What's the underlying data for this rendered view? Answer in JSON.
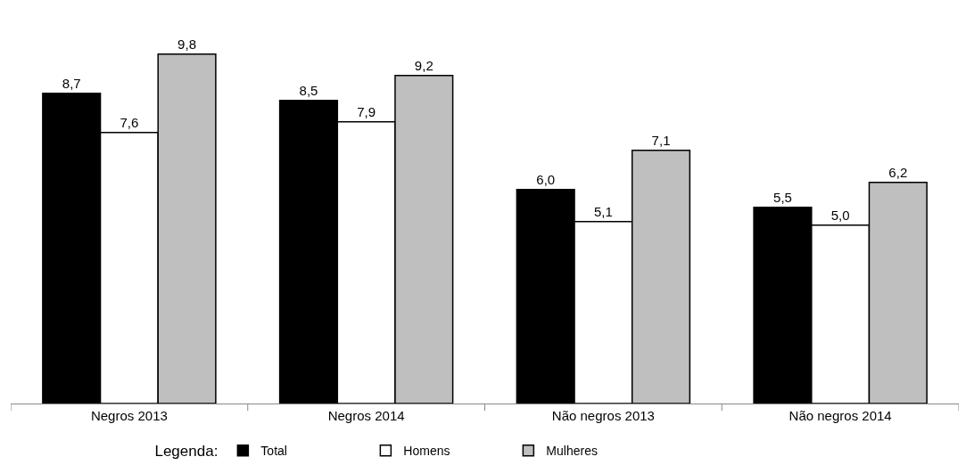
{
  "chart_data": {
    "type": "bar",
    "categories": [
      "Negros 2013",
      "Negros 2014",
      "Não negros 2013",
      "Não negros 2014"
    ],
    "series": [
      {
        "name": "Total",
        "color": "#000000",
        "values": [
          8.7,
          8.5,
          6.0,
          5.5
        ],
        "value_labels": [
          "8,7",
          "8,5",
          "6,0",
          "5,5"
        ]
      },
      {
        "name": "Homens",
        "color": "#ffffff",
        "values": [
          7.6,
          7.9,
          5.1,
          5.0
        ],
        "value_labels": [
          "7,6",
          "7,9",
          "5,1",
          "5,0"
        ]
      },
      {
        "name": "Mulheres",
        "color": "#bfbfbf",
        "values": [
          9.8,
          9.2,
          7.1,
          6.2
        ],
        "value_labels": [
          "9,8",
          "9,2",
          "7,1",
          "6,2"
        ]
      }
    ],
    "legend_title": "Legenda:",
    "legend": "bottom",
    "grid": false,
    "tick_labels": "x"
  }
}
